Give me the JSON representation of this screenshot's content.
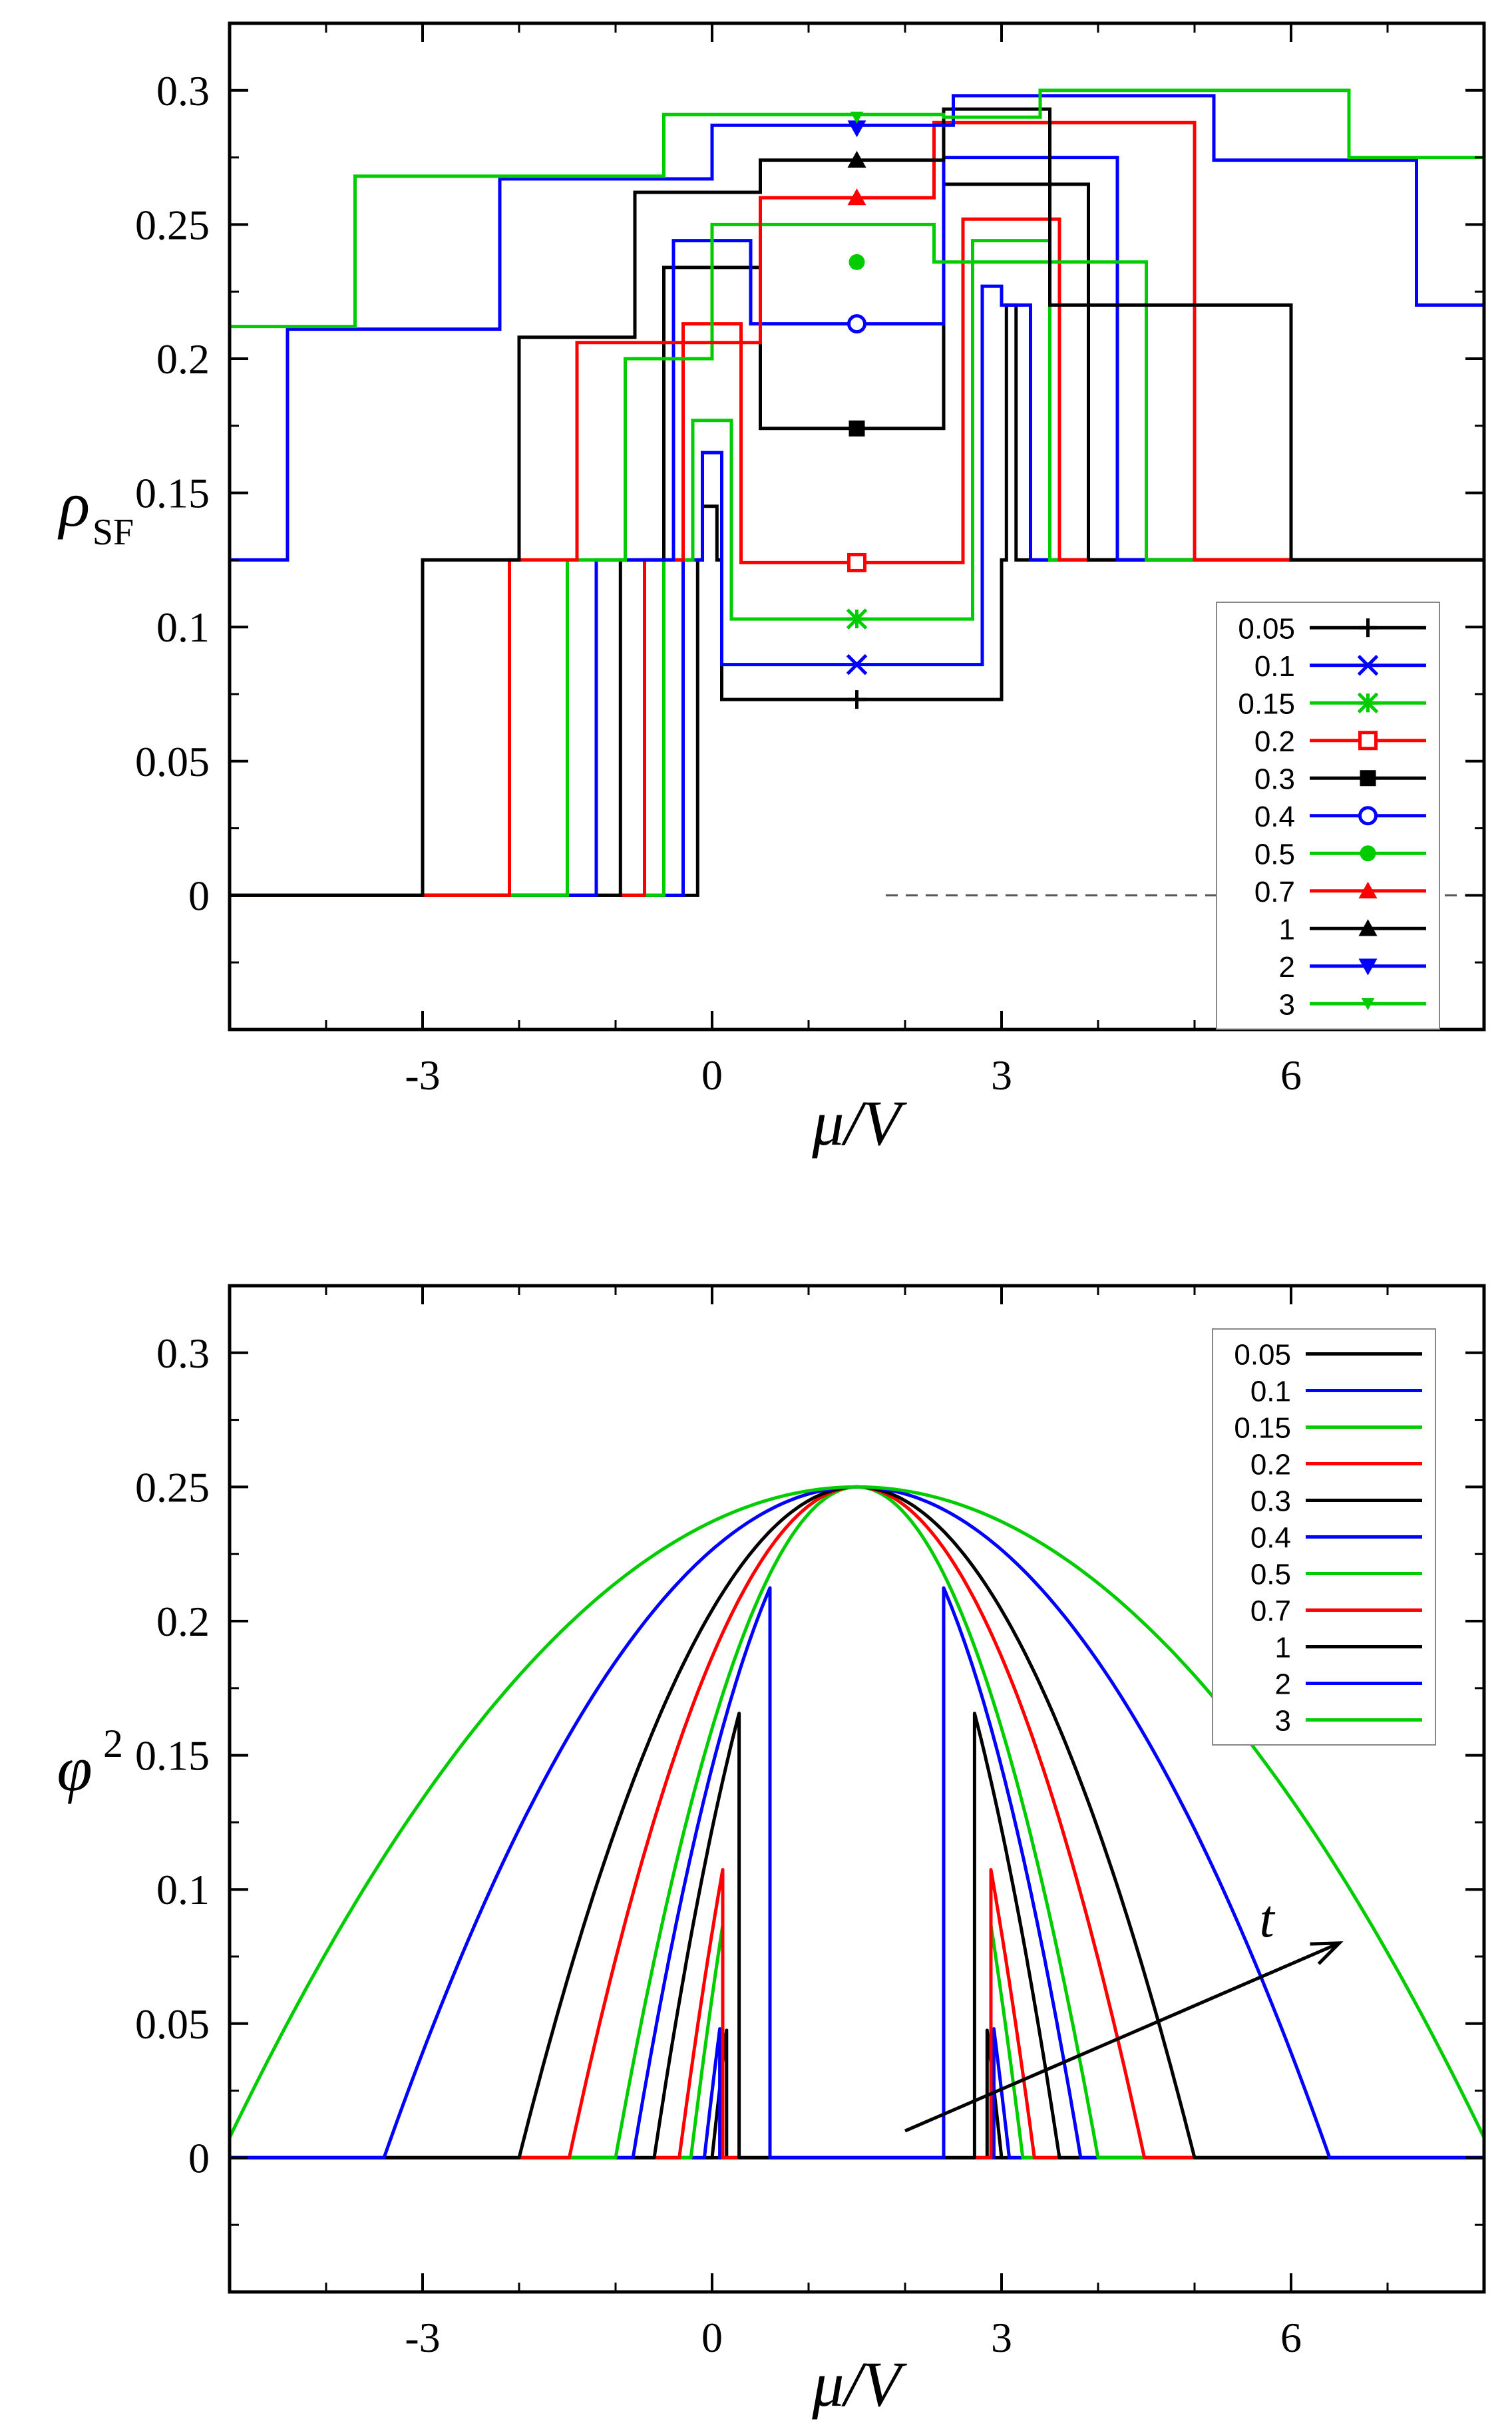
{
  "chart_data": [
    {
      "type": "line",
      "ylabel_symbol": "ρ",
      "ylabel_sub": "SF",
      "xlabel": "μ/V",
      "xlim": [
        -5,
        8
      ],
      "ylim": [
        -0.05,
        0.325
      ],
      "xticks": [
        "-3",
        "0",
        "3",
        "6"
      ],
      "xtick_values": [
        -3,
        0,
        3,
        6
      ],
      "yticks": [
        "0",
        "0.05",
        "0.1",
        "0.15",
        "0.2",
        "0.25",
        "0.3"
      ],
      "ytick_values": [
        0,
        0.05,
        0.1,
        0.15,
        0.2,
        0.25,
        0.3
      ],
      "reference_line": {
        "y": 0,
        "style": "dashed"
      },
      "legend_position": "bottom-right",
      "series": [
        {
          "name": "0.05",
          "color": "#000000",
          "marker": "plus",
          "marker_x": 1.5,
          "marker_y": 0.073,
          "x": [
            -5,
            -0.15,
            -0.15,
            -0.1,
            -0.1,
            0.05,
            0.05,
            0.1,
            0.1,
            3,
            3,
            3.05,
            3.05,
            3.15,
            3.15,
            8
          ],
          "y": [
            0,
            0,
            0.125,
            0.125,
            0.145,
            0.145,
            0.125,
            0.125,
            0.073,
            0.073,
            0.125,
            0.125,
            0.22,
            0.22,
            0.125,
            0.125
          ]
        },
        {
          "name": "0.1",
          "color": "#0000ff",
          "marker": "x",
          "marker_x": 1.5,
          "marker_y": 0.086,
          "x": [
            -5,
            -0.3,
            -0.3,
            -0.1,
            -0.1,
            0.1,
            0.1,
            2.8,
            2.8,
            3,
            3,
            3.3,
            3.3,
            8
          ],
          "y": [
            0,
            0,
            0.125,
            0.125,
            0.165,
            0.165,
            0.086,
            0.086,
            0.227,
            0.227,
            0.22,
            0.22,
            0.125,
            0.125
          ]
        },
        {
          "name": "0.15",
          "color": "#00cc00",
          "marker": "star",
          "marker_x": 1.5,
          "marker_y": 0.103,
          "x": [
            -5,
            -0.5,
            -0.5,
            -0.2,
            -0.2,
            0.2,
            0.2,
            2.7,
            2.7,
            3.5,
            3.5,
            8
          ],
          "y": [
            0,
            0,
            0.125,
            0.125,
            0.177,
            0.177,
            0.103,
            0.103,
            0.244,
            0.244,
            0.125,
            0.125
          ]
        },
        {
          "name": "0.2",
          "color": "#ff0000",
          "marker": "square-open",
          "marker_x": 1.5,
          "marker_y": 0.124,
          "x": [
            -5,
            -0.7,
            -0.7,
            -0.3,
            -0.3,
            0.3,
            0.3,
            2.6,
            2.6,
            3.6,
            3.6,
            8
          ],
          "y": [
            0,
            0,
            0.125,
            0.125,
            0.213,
            0.213,
            0.124,
            0.124,
            0.252,
            0.252,
            0.125,
            0.125
          ]
        },
        {
          "name": "0.3",
          "color": "#000000",
          "marker": "square",
          "marker_x": 1.5,
          "marker_y": 0.174,
          "x": [
            -5,
            -0.95,
            -0.95,
            -0.5,
            -0.5,
            0.5,
            0.5,
            2.4,
            2.4,
            3.9,
            3.9,
            8
          ],
          "y": [
            0,
            0,
            0.125,
            0.125,
            0.234,
            0.234,
            0.174,
            0.174,
            0.265,
            0.265,
            0.125,
            0.125
          ]
        },
        {
          "name": "0.4",
          "color": "#0000ff",
          "marker": "circle-open",
          "marker_x": 1.5,
          "marker_y": 0.213,
          "x": [
            -5,
            -1.2,
            -1.2,
            -0.4,
            -0.4,
            0.4,
            0.4,
            2.4,
            2.4,
            4.2,
            4.2,
            8
          ],
          "y": [
            0,
            0,
            0.125,
            0.125,
            0.244,
            0.244,
            0.213,
            0.213,
            0.275,
            0.275,
            0.125,
            0.125
          ]
        },
        {
          "name": "0.5",
          "color": "#00cc00",
          "marker": "circle",
          "marker_x": 1.5,
          "marker_y": 0.236,
          "x": [
            -5,
            -1.5,
            -1.5,
            -0.9,
            -0.9,
            0,
            0,
            2.3,
            2.3,
            4.5,
            4.5,
            8
          ],
          "y": [
            0,
            0,
            0.125,
            0.125,
            0.2,
            0.2,
            0.25,
            0.25,
            0.236,
            0.236,
            0.125,
            0.125
          ]
        },
        {
          "name": "0.7",
          "color": "#ff0000",
          "marker": "triangle",
          "marker_x": 1.5,
          "marker_y": 0.26,
          "x": [
            -5,
            -2.1,
            -2.1,
            -1.4,
            -1.4,
            0.5,
            0.5,
            2.3,
            2.3,
            5,
            5,
            8
          ],
          "y": [
            0,
            0,
            0.125,
            0.125,
            0.206,
            0.206,
            0.26,
            0.26,
            0.288,
            0.288,
            0.125,
            0.125
          ]
        },
        {
          "name": "1",
          "color": "#000000",
          "marker": "triangle",
          "marker_x": 1.5,
          "marker_y": 0.274,
          "x": [
            -5,
            -3,
            -3,
            -2,
            -2,
            -0.8,
            -0.8,
            0.5,
            0.5,
            2.4,
            2.4,
            3.5,
            3.5,
            6,
            6,
            8
          ],
          "y": [
            0,
            0,
            0.125,
            0.125,
            0.208,
            0.208,
            0.262,
            0.262,
            0.274,
            0.274,
            0.293,
            0.293,
            0.22,
            0.22,
            0.125,
            0.125
          ]
        },
        {
          "name": "2",
          "color": "#0000ff",
          "marker": "triangle-down",
          "marker_x": 1.5,
          "marker_y": 0.286,
          "x": [
            -5,
            -4.4,
            -4.4,
            -2.2,
            -2.2,
            0,
            0,
            2.5,
            2.5,
            5.2,
            5.2,
            7.3,
            7.3,
            8
          ],
          "y": [
            0.125,
            0.125,
            0.211,
            0.211,
            0.267,
            0.267,
            0.287,
            0.287,
            0.298,
            0.298,
            0.274,
            0.274,
            0.22,
            0.22
          ]
        },
        {
          "name": "3",
          "color": "#00cc00",
          "marker": "triangle-down-small",
          "marker_x": 1.5,
          "marker_y": 0.29,
          "x": [
            -5,
            -3.7,
            -3.7,
            -0.5,
            -0.5,
            2.4,
            2.4,
            3.4,
            3.4,
            6.6,
            6.6,
            8
          ],
          "y": [
            0.212,
            0.212,
            0.268,
            0.268,
            0.291,
            0.291,
            0.29,
            0.29,
            0.3,
            0.3,
            0.275,
            0.275
          ]
        }
      ]
    },
    {
      "type": "line",
      "ylabel_symbol": "φ",
      "ylabel_sup": "2",
      "xlabel": "μ/V",
      "xlim": [
        -5,
        8
      ],
      "ylim": [
        -0.05,
        0.325
      ],
      "xticks": [
        "-3",
        "0",
        "3",
        "6"
      ],
      "xtick_values": [
        -3,
        0,
        3,
        6
      ],
      "yticks": [
        "0",
        "0.05",
        "0.1",
        "0.15",
        "0.2",
        "0.25",
        "0.3"
      ],
      "ytick_values": [
        0,
        0.05,
        0.1,
        0.15,
        0.2,
        0.25,
        0.3
      ],
      "annotation": {
        "text": "t",
        "from": [
          2,
          0.01
        ],
        "to": [
          6.5,
          0.08
        ]
      },
      "legend_position": "top-right",
      "center": 1.5,
      "peak": 0.25,
      "series": [
        {
          "name": "0.05",
          "color": "#000000",
          "half_width": 1.5,
          "cut": 1.35
        },
        {
          "name": "0.1",
          "color": "#0000ff",
          "half_width": 1.58,
          "cut": 1.42
        },
        {
          "name": "0.15",
          "color": "#00cc00",
          "half_width": 1.72,
          "cut": 1.39
        },
        {
          "name": "0.2",
          "color": "#ff0000",
          "half_width": 1.84,
          "cut": 1.39
        },
        {
          "name": "0.3",
          "color": "#000000",
          "half_width": 2.1,
          "cut": 1.22
        },
        {
          "name": "0.4",
          "color": "#0000ff",
          "half_width": 2.32,
          "cut": 0.9
        },
        {
          "name": "0.5",
          "color": "#00cc00",
          "half_width": 2.5,
          "cut": 0
        },
        {
          "name": "0.7",
          "color": "#ff0000",
          "half_width": 2.98,
          "cut": 0
        },
        {
          "name": "1",
          "color": "#000000",
          "half_width": 3.5,
          "cut": 0
        },
        {
          "name": "2",
          "color": "#0000ff",
          "half_width": 4.9,
          "cut": 0
        },
        {
          "name": "3",
          "color": "#00cc00",
          "half_width": 6.6,
          "cut": 0
        }
      ]
    }
  ]
}
